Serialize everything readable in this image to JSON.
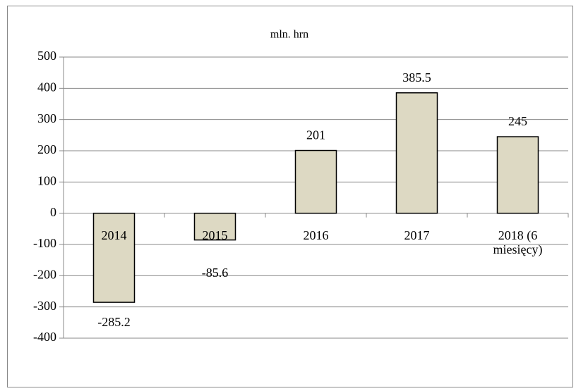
{
  "chart_data": {
    "type": "bar",
    "title": "mln. hrn",
    "categories": [
      "2014",
      "2015",
      "2016",
      "2017",
      "2018 (6 miesięcy)"
    ],
    "values": [
      -285.2,
      -85.6,
      201,
      385.5,
      245
    ],
    "color": "#ddd9c3",
    "ylim": [
      -400,
      500
    ],
    "yticks": [
      -400,
      -300,
      -200,
      -100,
      0,
      100,
      200,
      300,
      400,
      500
    ],
    "grid": true
  }
}
